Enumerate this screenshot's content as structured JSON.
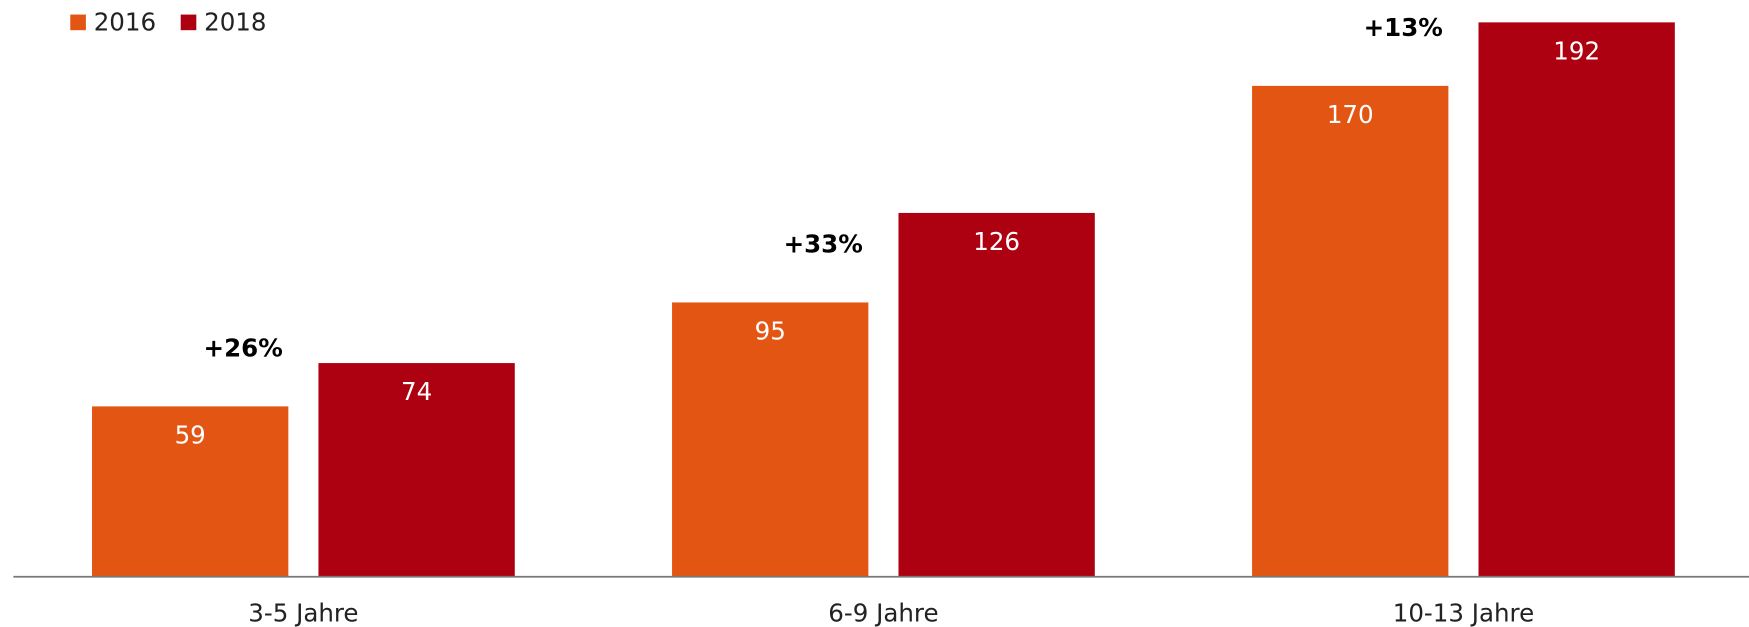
{
  "chart_data": {
    "type": "bar",
    "categories": [
      "3-5 Jahre",
      "6-9 Jahre",
      "10-13 Jahre"
    ],
    "series": [
      {
        "name": "2016",
        "color": "#e35512",
        "values": [
          59,
          95,
          170
        ]
      },
      {
        "name": "2018",
        "color": "#ad0010",
        "values": [
          74,
          126,
          192
        ]
      }
    ],
    "annotations": [
      "+26%",
      "+33%",
      "+13%"
    ],
    "ylim": [
      0,
      192
    ],
    "legend": "top-left"
  }
}
